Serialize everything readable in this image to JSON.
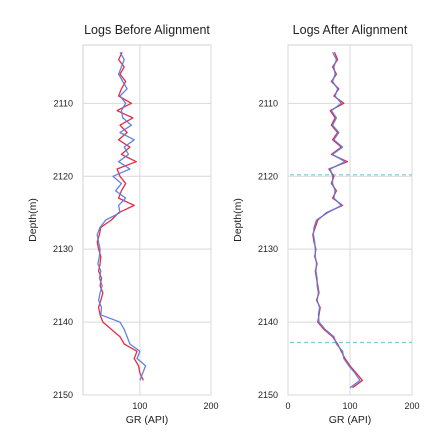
{
  "chart_data": [
    {
      "type": "line",
      "title": "Logs Before Alignment",
      "xlabel": "GR (API)",
      "ylabel": "Depth(m)",
      "xlim": [
        20,
        200
      ],
      "ylim": [
        2150,
        2102
      ],
      "xticks": [
        100,
        200
      ],
      "yticks": [
        2110,
        2120,
        2130,
        2140,
        2150
      ],
      "grid": true,
      "series": [
        {
          "color": "#e8203a",
          "depth": [
            2103,
            2104,
            2105,
            2106,
            2107,
            2108,
            2109,
            2110,
            2111,
            2112,
            2113,
            2114,
            2115,
            2116,
            2117,
            2118,
            2119,
            2120,
            2121,
            2122,
            2123,
            2124,
            2125,
            2126,
            2127,
            2128,
            2129,
            2130,
            2131,
            2132,
            2133,
            2134,
            2135,
            2136,
            2137,
            2138,
            2139,
            2140,
            2141,
            2142,
            2143,
            2144,
            2145,
            2146,
            2147,
            2148
          ],
          "values": [
            75,
            70,
            78,
            72,
            80,
            74,
            70,
            88,
            68,
            90,
            72,
            82,
            70,
            86,
            74,
            95,
            68,
            72,
            80,
            74,
            70,
            92,
            70,
            60,
            45,
            43,
            40,
            42,
            45,
            44,
            42,
            46,
            44,
            48,
            45,
            42,
            44,
            48,
            60,
            72,
            78,
            96,
            92,
            98,
            100,
            105
          ]
        },
        {
          "color": "#5a7ddd",
          "depth": [
            2103,
            2104,
            2105,
            2106,
            2107,
            2108,
            2109,
            2110,
            2111,
            2112,
            2113,
            2114,
            2115,
            2116,
            2117,
            2118,
            2119,
            2120,
            2121,
            2122,
            2123,
            2124,
            2125,
            2126,
            2127,
            2128,
            2129,
            2130,
            2131,
            2132,
            2133,
            2134,
            2135,
            2136,
            2137,
            2138,
            2139,
            2140,
            2141,
            2142,
            2143,
            2144,
            2145,
            2146,
            2147,
            2148
          ],
          "values": [
            72,
            78,
            74,
            70,
            76,
            82,
            72,
            80,
            74,
            76,
            88,
            72,
            92,
            78,
            84,
            70,
            86,
            62,
            74,
            66,
            80,
            70,
            72,
            52,
            44,
            40,
            42,
            44,
            43,
            41,
            45,
            43,
            47,
            44,
            42,
            46,
            45,
            72,
            78,
            82,
            86,
            100,
            96,
            108,
            104,
            100
          ]
        }
      ]
    },
    {
      "type": "line",
      "title": "Logs After Alignment",
      "xlabel": "GR (API)",
      "ylabel": "Depth(m)",
      "xlim": [
        0,
        200
      ],
      "ylim": [
        2150,
        2102
      ],
      "xticks": [
        0,
        100,
        200
      ],
      "yticks": [
        2110,
        2120,
        2130,
        2140,
        2150
      ],
      "grid": true,
      "reference_lines": [
        {
          "depth": 2119.8,
          "color": "#7ec8dc",
          "style": "dashed"
        },
        {
          "depth": 2142.8,
          "color": "#7ec8dc",
          "style": "dashed"
        }
      ],
      "series": [
        {
          "color": "#e8203a",
          "depth": [
            2103,
            2104,
            2105,
            2106,
            2107,
            2108,
            2109,
            2110,
            2111,
            2112,
            2113,
            2114,
            2115,
            2116,
            2117,
            2118,
            2119,
            2120,
            2121,
            2122,
            2123,
            2124,
            2125,
            2126,
            2127,
            2128,
            2129,
            2130,
            2131,
            2132,
            2133,
            2134,
            2135,
            2136,
            2137,
            2138,
            2139,
            2140,
            2141,
            2142,
            2143,
            2144,
            2145,
            2146,
            2147,
            2148,
            2149
          ],
          "values": [
            75,
            80,
            72,
            78,
            70,
            82,
            74,
            90,
            68,
            76,
            70,
            80,
            72,
            86,
            70,
            96,
            66,
            74,
            70,
            78,
            72,
            88,
            62,
            48,
            44,
            40,
            42,
            45,
            43,
            47,
            44,
            46,
            48,
            50,
            46,
            52,
            50,
            48,
            58,
            72,
            80,
            86,
            92,
            100,
            110,
            120,
            104
          ]
        },
        {
          "color": "#5a7ddd",
          "depth": [
            2103,
            2104,
            2105,
            2106,
            2107,
            2108,
            2109,
            2110,
            2111,
            2112,
            2113,
            2114,
            2115,
            2116,
            2117,
            2118,
            2119,
            2120,
            2121,
            2122,
            2123,
            2124,
            2125,
            2126,
            2127,
            2128,
            2129,
            2130,
            2131,
            2132,
            2133,
            2134,
            2135,
            2136,
            2137,
            2138,
            2139,
            2140,
            2141,
            2142,
            2143,
            2144,
            2145,
            2146,
            2147,
            2148,
            2149
          ],
          "values": [
            72,
            78,
            74,
            76,
            72,
            80,
            76,
            86,
            70,
            78,
            72,
            82,
            74,
            88,
            72,
            92,
            68,
            72,
            72,
            76,
            74,
            86,
            64,
            46,
            42,
            41,
            43,
            44,
            44,
            46,
            45,
            47,
            47,
            49,
            47,
            51,
            49,
            50,
            60,
            74,
            78,
            88,
            90,
            98,
            108,
            116,
            100
          ]
        }
      ]
    }
  ]
}
